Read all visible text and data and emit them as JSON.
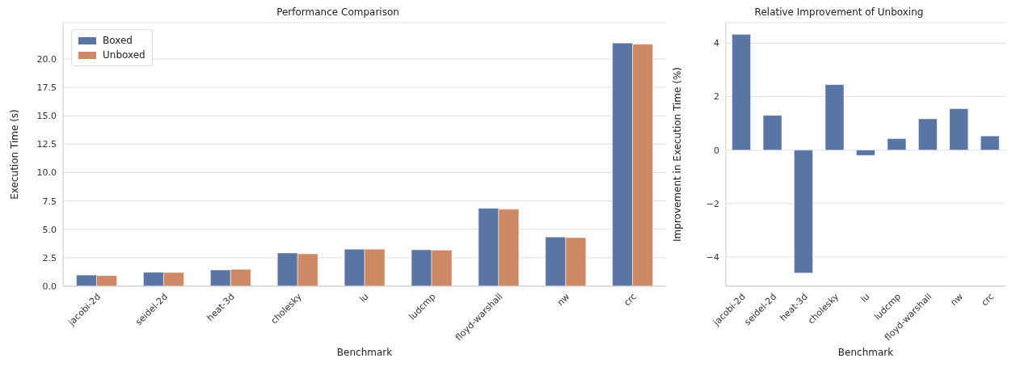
{
  "chart_data": [
    {
      "type": "bar",
      "title": "Performance Comparison",
      "xlabel": "Benchmark",
      "ylabel": "Execution Time (s)",
      "categories": [
        "jacobi-2d",
        "seidel-2d",
        "heat-3d",
        "cholesky",
        "lu",
        "ludcmp",
        "floyd-warshall",
        "nw",
        "crc"
      ],
      "series": [
        {
          "name": "Boxed",
          "color": "#5975a4",
          "values": [
            0.98,
            1.22,
            1.42,
            2.92,
            3.25,
            3.2,
            6.85,
            4.33,
            21.4
          ]
        },
        {
          "name": "Unboxed",
          "color": "#cc8963",
          "values": [
            0.93,
            1.2,
            1.48,
            2.85,
            3.25,
            3.17,
            6.77,
            4.27,
            21.3
          ]
        }
      ],
      "ylim": [
        0,
        23.2
      ],
      "yticks": [
        {
          "value": 0,
          "label": "0.0"
        },
        2.5,
        {
          "value": 5,
          "label": "5.0"
        },
        7.5,
        {
          "value": 10,
          "label": "10.0"
        },
        12.5,
        {
          "value": 15,
          "label": "15.0"
        },
        17.5,
        {
          "value": 20,
          "label": "20.0"
        }
      ],
      "grid": "y",
      "legend": "top left"
    },
    {
      "type": "bar",
      "title": "Relative Improvement of Unboxing",
      "xlabel": "Benchmark",
      "ylabel": "Improvement in Execution Time (%)",
      "categories": [
        "jacobi-2d",
        "seidel-2d",
        "heat-3d",
        "cholesky",
        "lu",
        "ludcmp",
        "floyd-warshall",
        "nw",
        "crc"
      ],
      "series": [
        {
          "color": "#5975a4",
          "values": [
            4.33,
            1.3,
            -4.6,
            2.45,
            -0.2,
            0.43,
            1.17,
            1.55,
            0.53
          ]
        }
      ],
      "ylim": [
        -5.09,
        4.77
      ],
      "yticks": [
        {
          "value": -4,
          "label": "−4"
        },
        {
          "value": -2,
          "label": "−2"
        },
        0,
        2,
        4
      ],
      "grid": "y"
    }
  ]
}
